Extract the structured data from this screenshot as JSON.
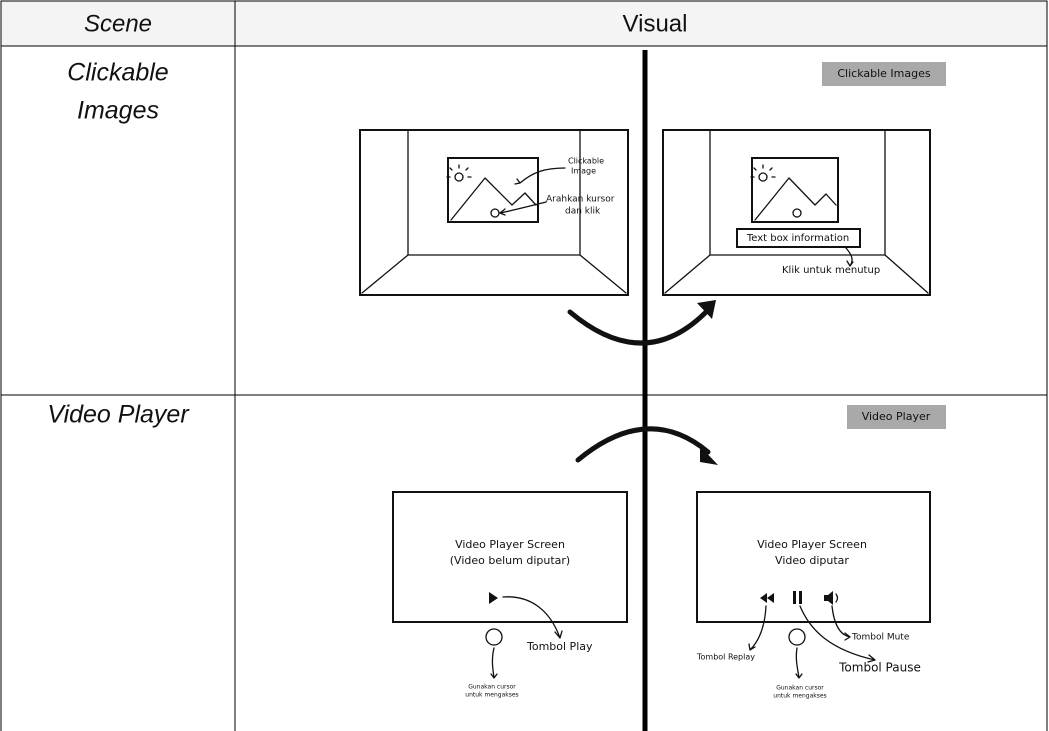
{
  "table": {
    "header": [
      "Scene",
      "Visual"
    ],
    "rows": [
      {
        "scene": [
          "Clickable",
          "Images"
        ],
        "visual": {
          "badge": "Clickable Images",
          "before": {
            "image_label": [
              "Clickable",
              "Image"
            ],
            "hint": [
              "Arahkan kursor",
              "dan klik"
            ]
          },
          "after": {
            "text_box": "Text box information",
            "close_hint": "Klik untuk menutup"
          }
        }
      },
      {
        "scene": [
          "Video Player"
        ],
        "visual": {
          "badge": "Video Player",
          "before": {
            "screen": [
              "Video Player Screen",
              "(Video belum diputar)"
            ],
            "play": "Tombol Play",
            "cursor": [
              "Gunakan cursor",
              "untuk mengakses"
            ]
          },
          "after": {
            "screen": [
              "Video Player Screen",
              "Video diputar"
            ],
            "replay": "Tombol Replay",
            "pause": "Tombol Pause",
            "mute": "Tombol Mute",
            "cursor": [
              "Gunakan cursor",
              "untuk mengakses"
            ]
          }
        }
      }
    ]
  }
}
